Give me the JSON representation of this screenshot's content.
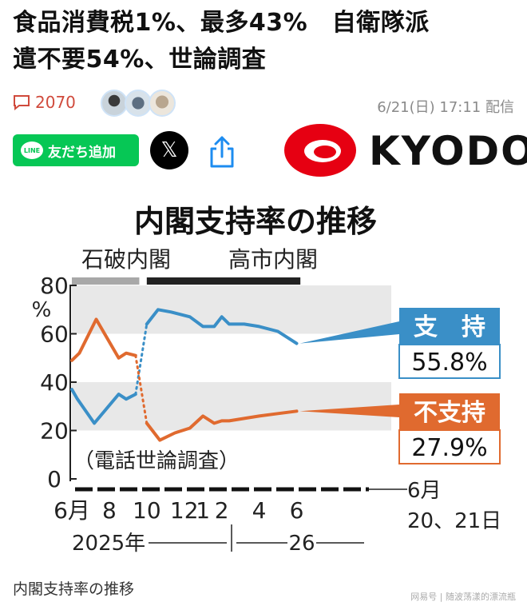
{
  "headline": "食品消費税1%、最多43%　自衛隊派遣不要54%、世論調査",
  "headline_line1": "食品消費税1%、最多43%　自衛隊派",
  "headline_line2": "遣不要54%、世論調査",
  "comments": {
    "count": "2070",
    "icon": "comment-icon"
  },
  "avatars": [
    {
      "icon": "avatar"
    },
    {
      "icon": "avatar"
    },
    {
      "icon": "avatar"
    }
  ],
  "timestamp": "6/21(日) 17:11 配信",
  "share": {
    "line_badge": "LINE",
    "line_label": "友だち追加",
    "x_label": "𝕏",
    "share_icon": "share-icon"
  },
  "brand": {
    "name": "KYODO",
    "color": "#e60012"
  },
  "colors": {
    "support": "#3a8fc7",
    "nonsupport": "#e06a2f",
    "band": "#e8e8e8"
  },
  "chart_data": {
    "type": "line",
    "title": "内閣支持率の推移",
    "eras": [
      {
        "label": "石破内閣",
        "color": "#a8a8a8"
      },
      {
        "label": "高市内閣",
        "color": "#222222"
      }
    ],
    "ylim": [
      0,
      80
    ],
    "ytick_labels": [
      "80",
      "60",
      "40",
      "20",
      "0"
    ],
    "yticks": [
      80,
      60,
      40,
      20,
      0
    ],
    "y_unit": "%",
    "xlim": [
      6,
      30.3
    ],
    "xtick_labels": [
      "6月",
      "8",
      "10",
      "12",
      "1",
      "2",
      "4",
      "6"
    ],
    "xticks": [
      6,
      8,
      10,
      12,
      13,
      14,
      16,
      18
    ],
    "year_labels": [
      "2025年",
      "26"
    ],
    "end_label": "6月\n20、21日",
    "end_label_line1": "6月",
    "end_label_line2": "20、21日",
    "note": "（電話世論調査）",
    "series": [
      {
        "name": "支　持",
        "final_value": "55.8%",
        "x": [
          6.0,
          6.3,
          7.2,
          8.5,
          8.9,
          9.4,
          10.0,
          10.6,
          11.3,
          12.3,
          13.0,
          13.6,
          14.0,
          14.4,
          15.2,
          16.0,
          17.0,
          18.0
        ],
        "y": [
          37,
          33,
          23,
          35,
          33,
          35,
          64,
          70,
          69,
          67,
          63,
          63,
          67,
          64,
          64,
          63,
          61,
          56
        ],
        "segments": [
          [
            0,
            5,
            "solid"
          ],
          [
            5,
            6,
            "dotted"
          ],
          [
            6,
            17,
            "solid"
          ]
        ]
      },
      {
        "name": "不支持",
        "final_value": "27.9%",
        "x": [
          6.0,
          6.4,
          7.3,
          8.5,
          8.9,
          9.4,
          10.0,
          10.7,
          11.5,
          12.3,
          13.0,
          13.6,
          14.0,
          14.4,
          15.2,
          16.0,
          17.0,
          18.0
        ],
        "y": [
          49,
          52,
          66,
          50,
          52,
          51,
          23,
          16,
          19,
          21,
          26,
          23,
          24,
          24,
          25,
          26,
          27,
          28
        ],
        "segments": [
          [
            0,
            5,
            "solid"
          ],
          [
            5,
            6,
            "dotted"
          ],
          [
            6,
            17,
            "solid"
          ]
        ]
      }
    ],
    "grid": false,
    "shaded_bands": [
      [
        20,
        40
      ],
      [
        60,
        80
      ]
    ],
    "legend": "right"
  },
  "caption": "内閣支持率の推移",
  "watermark": "网易号 | 随波荡漾的漂流瓶"
}
